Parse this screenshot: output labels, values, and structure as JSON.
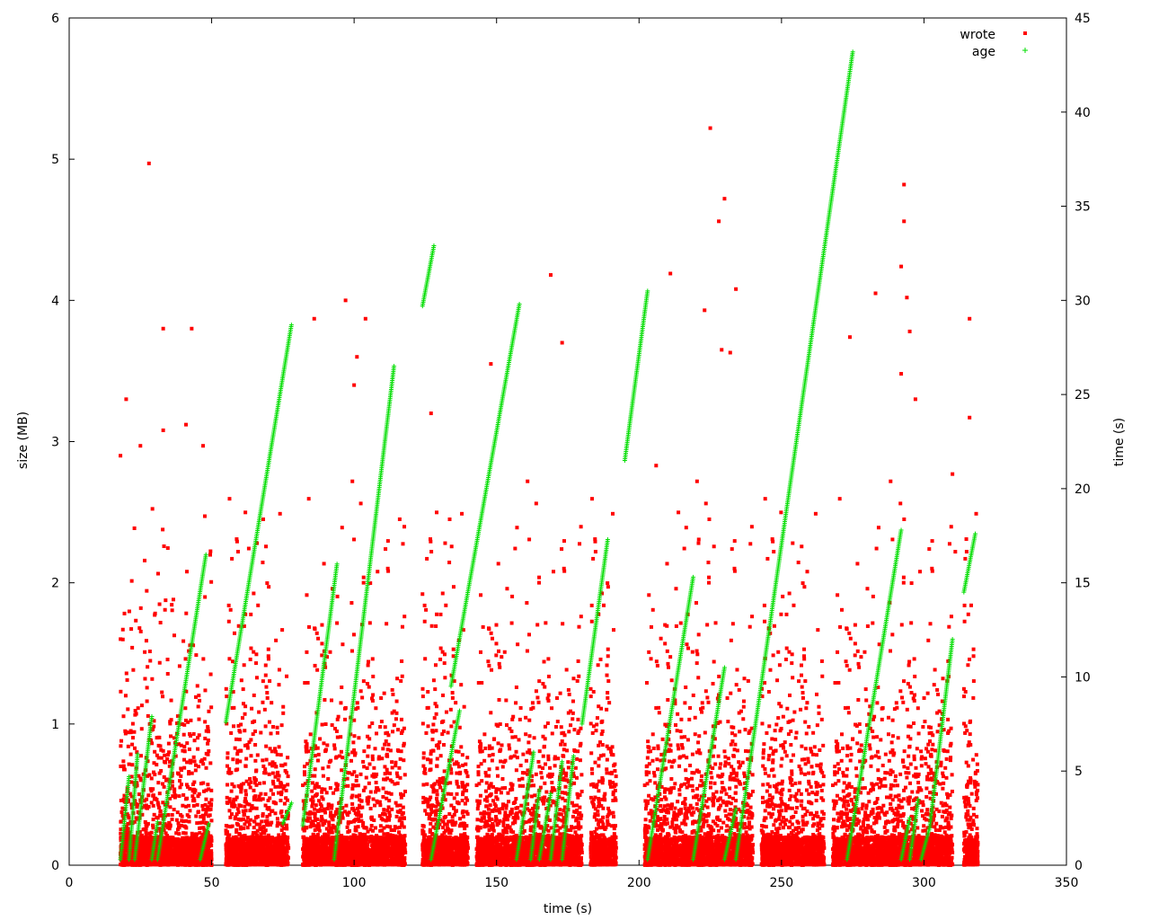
{
  "chart_data": {
    "type": "scatter",
    "xlabel": "time (s)",
    "ylabel": "size (MB)",
    "y2label": "time (s)",
    "xlim": [
      0,
      350
    ],
    "ylim": [
      0,
      6
    ],
    "y2lim": [
      0,
      45
    ],
    "x_ticks": [
      "0",
      "50",
      "100",
      "150",
      "200",
      "250",
      "300",
      "350"
    ],
    "y_ticks": [
      "0",
      "1",
      "2",
      "3",
      "4",
      "5",
      "6"
    ],
    "y2_ticks": [
      "0",
      "5",
      "10",
      "15",
      "20",
      "25",
      "30",
      "35",
      "40",
      "45"
    ],
    "grid": false,
    "legend_position": "top-right",
    "series": [
      {
        "name": "wrote",
        "axis": "y",
        "color": "#ff0000",
        "marker": "square",
        "sessions": [
          [
            18,
            50
          ],
          [
            55,
            77
          ],
          [
            82,
            118
          ],
          [
            124,
            140
          ],
          [
            143,
            180
          ],
          [
            183,
            192
          ],
          [
            202,
            240
          ],
          [
            243,
            265
          ],
          [
            268,
            310
          ],
          [
            314,
            319
          ]
        ],
        "outliers": [
          [
            18,
            2.9
          ],
          [
            20,
            3.3
          ],
          [
            25,
            2.97
          ],
          [
            28,
            4.97
          ],
          [
            33,
            3.8
          ],
          [
            33,
            3.08
          ],
          [
            41,
            3.12
          ],
          [
            43,
            3.8
          ],
          [
            47,
            2.97
          ],
          [
            86,
            3.87
          ],
          [
            97,
            4.0
          ],
          [
            101,
            3.6
          ],
          [
            104,
            3.87
          ],
          [
            100,
            3.4
          ],
          [
            116,
            2.45
          ],
          [
            127,
            3.2
          ],
          [
            124,
            1.92
          ],
          [
            148,
            3.55
          ],
          [
            169,
            4.18
          ],
          [
            173,
            3.7
          ],
          [
            206,
            2.83
          ],
          [
            211,
            4.19
          ],
          [
            223,
            3.93
          ],
          [
            225,
            5.22
          ],
          [
            228,
            4.56
          ],
          [
            230,
            4.72
          ],
          [
            234,
            4.08
          ],
          [
            229,
            3.65
          ],
          [
            232,
            3.63
          ],
          [
            274,
            3.74
          ],
          [
            283,
            4.05
          ],
          [
            293,
            4.82
          ],
          [
            293,
            4.56
          ],
          [
            294,
            4.02
          ],
          [
            292,
            4.24
          ],
          [
            295,
            3.78
          ],
          [
            292,
            3.48
          ],
          [
            297,
            3.3
          ],
          [
            316,
            3.87
          ],
          [
            316,
            3.17
          ],
          [
            310,
            2.77
          ],
          [
            311,
            2.22
          ]
        ]
      },
      {
        "name": "age",
        "axis": "y2",
        "color": "#00dd00",
        "marker": "plus",
        "segments": [
          [
            18,
            0.3,
            21,
            4.7
          ],
          [
            21,
            0.3,
            24,
            5.9
          ],
          [
            23,
            0.3,
            29,
            7.9
          ],
          [
            29,
            0.3,
            31,
            2.3
          ],
          [
            31,
            0.3,
            48,
            16.5
          ],
          [
            46,
            0.3,
            49,
            2.2
          ],
          [
            55,
            7.6,
            78,
            28.7
          ],
          [
            75,
            2.2,
            78,
            3.3
          ],
          [
            82,
            2.1,
            94,
            16
          ],
          [
            93,
            0.3,
            114,
            26.5
          ],
          [
            124,
            29.7,
            128,
            32.9
          ],
          [
            127,
            0.3,
            137,
            8.2
          ],
          [
            134,
            9.5,
            158,
            29.8
          ],
          [
            157,
            0.3,
            163,
            6
          ],
          [
            162,
            0.3,
            165,
            4
          ],
          [
            165,
            0.3,
            169,
            3.8
          ],
          [
            169,
            0.3,
            173,
            5.5
          ],
          [
            173,
            0.3,
            177,
            5.8
          ],
          [
            180,
            7.5,
            189,
            17.3
          ],
          [
            195,
            21.5,
            203,
            30.5
          ],
          [
            203,
            0.3,
            219,
            15.3
          ],
          [
            219,
            0.3,
            230,
            10.5
          ],
          [
            230,
            0.3,
            234,
            3
          ],
          [
            234,
            0.3,
            275,
            43.2
          ],
          [
            273,
            0.3,
            292,
            17.8
          ],
          [
            292,
            0.3,
            295,
            2.5
          ],
          [
            295,
            0.3,
            298,
            3.5
          ],
          [
            299,
            0.3,
            302,
            2
          ],
          [
            302,
            2,
            310,
            12
          ],
          [
            314,
            14.5,
            318,
            17.6
          ]
        ]
      }
    ]
  }
}
